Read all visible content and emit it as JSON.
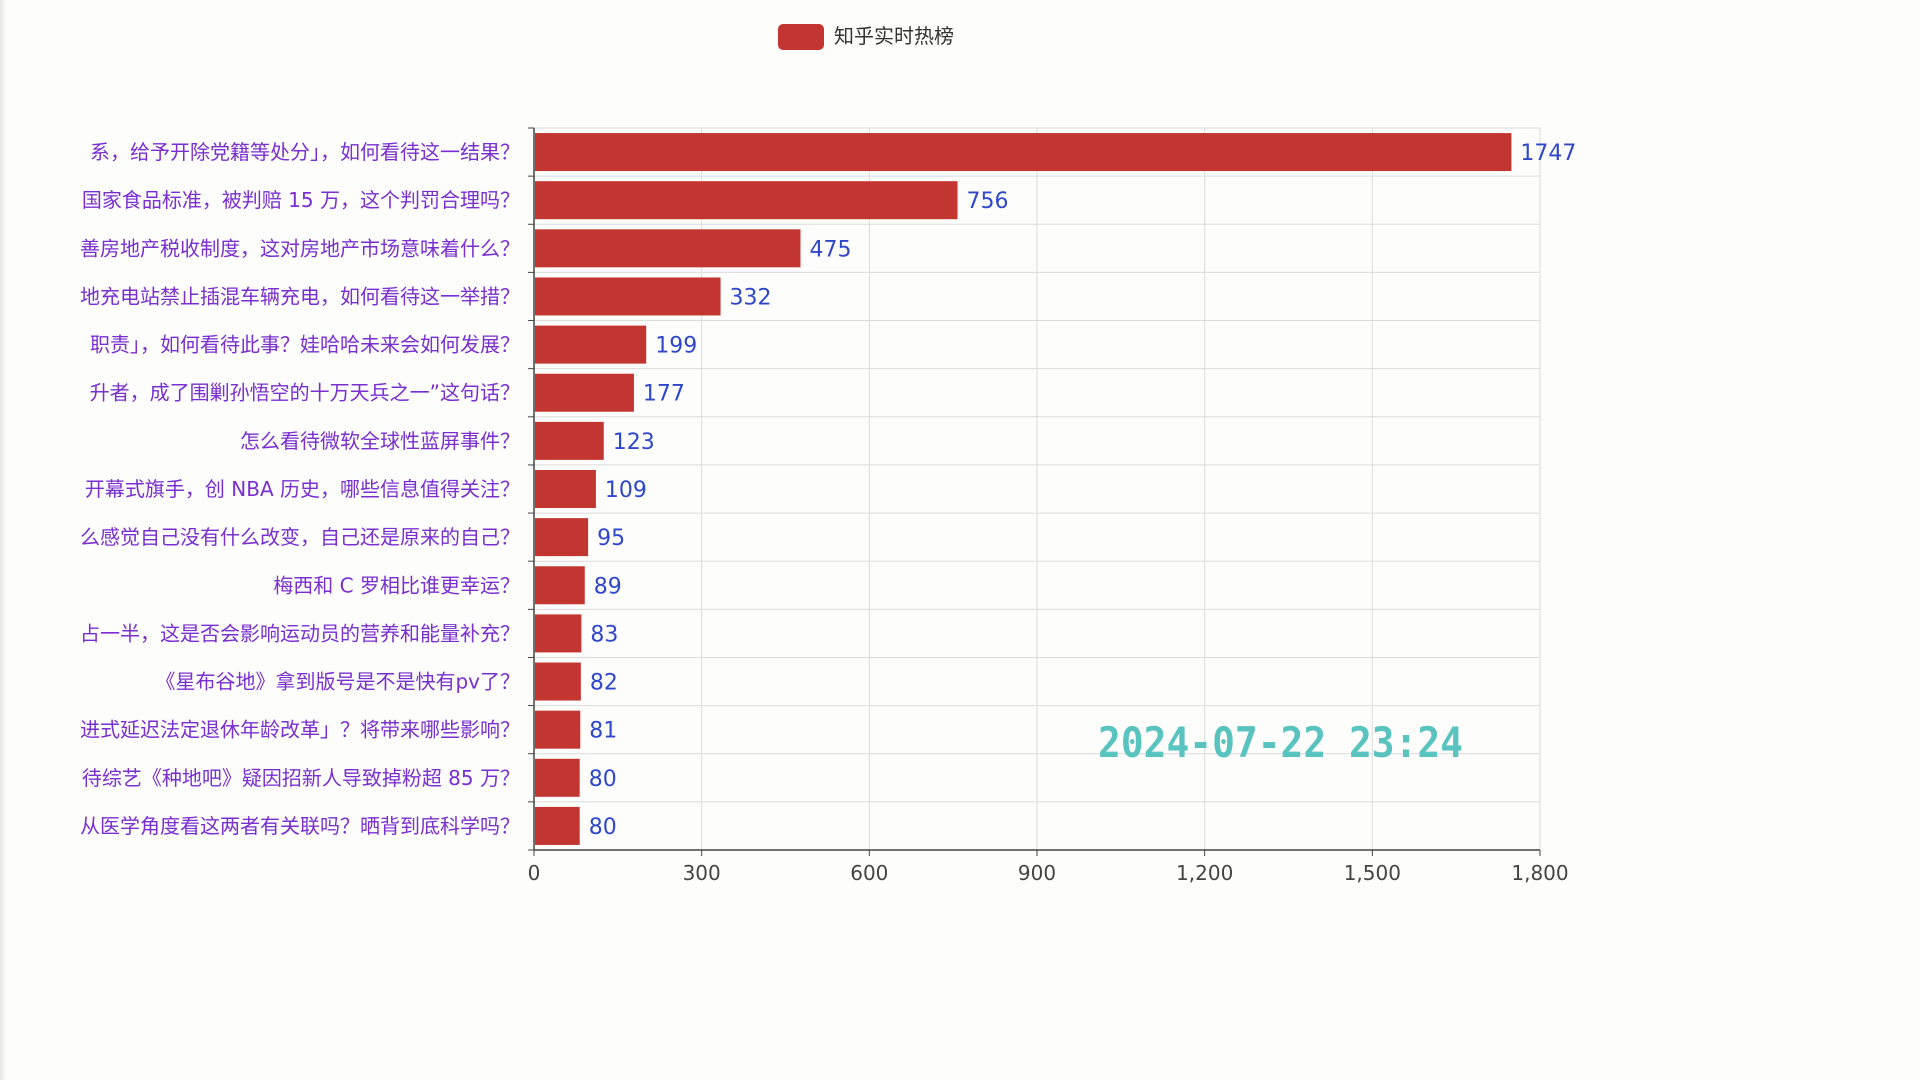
{
  "chart_data": {
    "type": "bar",
    "orientation": "horizontal",
    "legend": {
      "label": "知乎实时热榜",
      "color": "#c23531",
      "placement": "top-center"
    },
    "timestamp": "2024-07-22  23:24",
    "timestamp_color": "#59c3bf",
    "bar_color": "#c23531",
    "label_color": "#2f47c8",
    "category_color": "#7a2fd0",
    "grid": true,
    "xlim": [
      0,
      1800
    ],
    "x_ticks": [
      0,
      300,
      600,
      900,
      1200,
      1500,
      1800
    ],
    "x_tick_labels": [
      "0",
      "300",
      "600",
      "900",
      "1,200",
      "1,500",
      "1,800"
    ],
    "categories": [
      "系，给予开除党籍等处分」，如何看待这一结果？",
      "国家食品标准，被判赔 15 万，这个判罚合理吗？",
      "善房地产税收制度，这对房地产市场意味着什么？",
      "地充电站禁止插混车辆充电，如何看待这一举措？",
      "职责」，如何看待此事？娃哈哈未来会如何发展？",
      "升者，成了围剿孙悟空的十万天兵之一”这句话？",
      "怎么看待微软全球性蓝屏事件？",
      "开幕式旗手，创 NBA 历史，哪些信息值得关注？",
      "么感觉自己没有什么改变，自己还是原来的自己？",
      "梅西和 C 罗相比谁更幸运？",
      "占一半，这是否会影响运动员的营养和能量补充？",
      "《星布谷地》拿到版号是不是快有pv了？",
      "进式延迟法定退休年龄改革」？将带来哪些影响？",
      "待综艺《种地吧》疑因招新人导致掉粉超 85 万？",
      "从医学角度看这两者有关联吗？晒背到底科学吗？"
    ],
    "values": [
      1747,
      756,
      475,
      332,
      199,
      177,
      123,
      109,
      95,
      89,
      83,
      82,
      81,
      80,
      80
    ],
    "value_labels": [
      "1747",
      "756",
      "475",
      "332",
      "199",
      "177",
      "123",
      "109",
      "95",
      "89",
      "83",
      "82",
      "81",
      "80",
      "80"
    ]
  }
}
